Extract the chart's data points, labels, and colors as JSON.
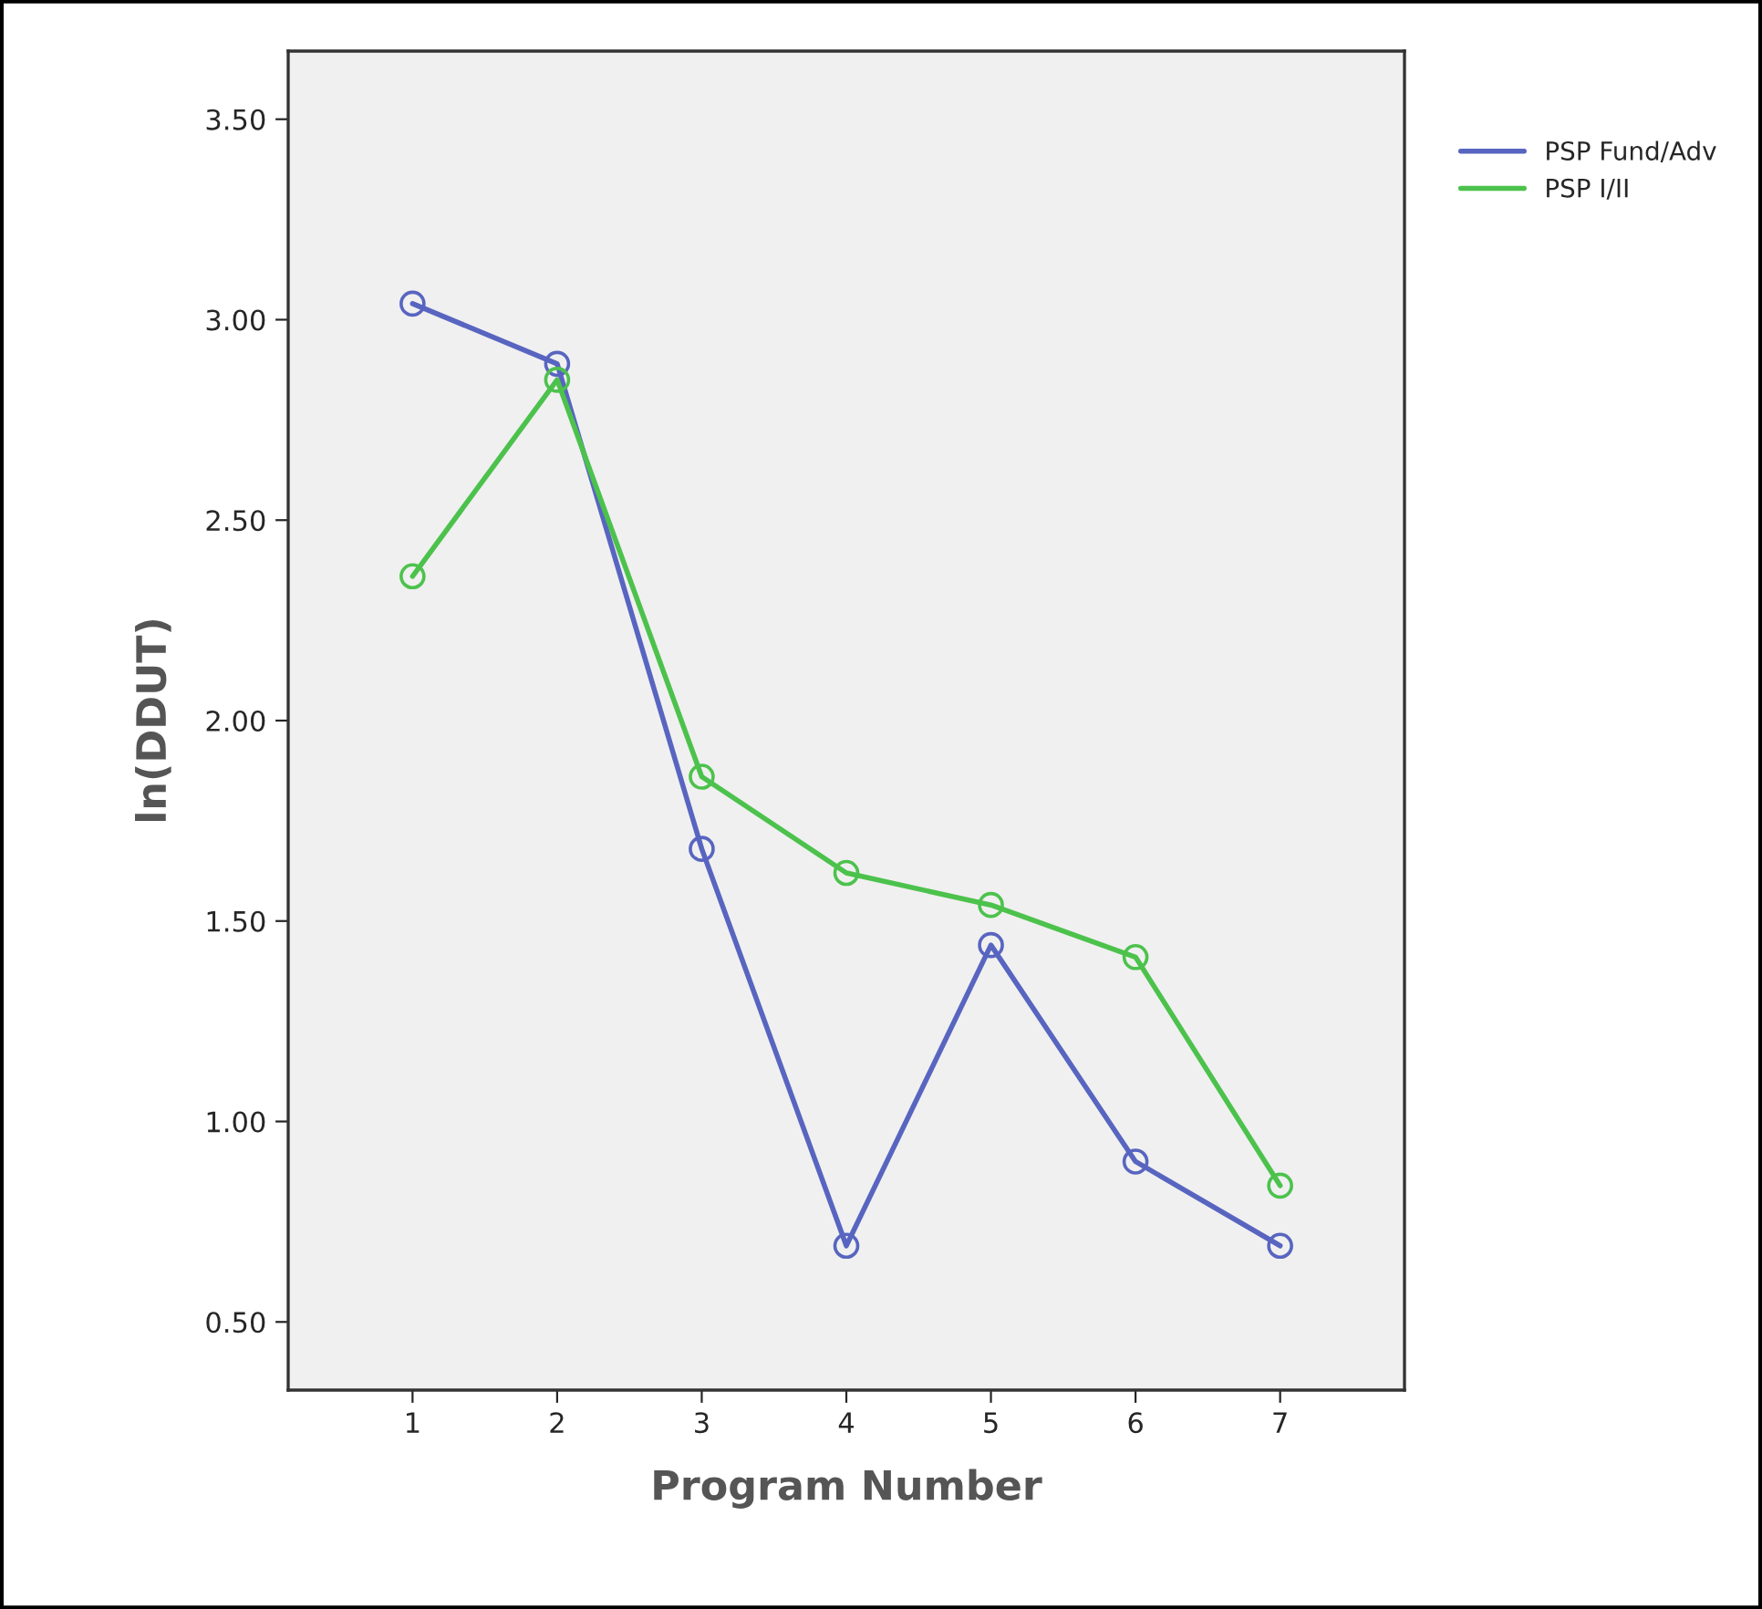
{
  "chart_data": {
    "type": "line",
    "xlabel": "Program Number",
    "ylabel": "ln(DDUT)",
    "categories": [
      "1",
      "2",
      "3",
      "4",
      "5",
      "6",
      "7"
    ],
    "series": [
      {
        "name": "PSP Fund/Adv",
        "color": "#5865c0",
        "values": [
          3.04,
          2.89,
          1.68,
          0.69,
          1.44,
          0.9,
          0.69
        ]
      },
      {
        "name": "PSP I/II",
        "color": "#4cc24c",
        "values": [
          2.36,
          2.85,
          1.86,
          1.62,
          1.54,
          1.41,
          0.84
        ]
      }
    ],
    "ylim": [
      0.33,
      3.67
    ],
    "yticks": [
      {
        "value": 0.5,
        "label": "0.50"
      },
      {
        "value": 1.0,
        "label": "1.00"
      },
      {
        "value": 1.5,
        "label": "1.50"
      },
      {
        "value": 2.0,
        "label": "2.00"
      },
      {
        "value": 2.5,
        "label": "2.50"
      },
      {
        "value": 3.0,
        "label": "3.00"
      },
      {
        "value": 3.5,
        "label": "3.50"
      }
    ],
    "marker": "circle",
    "grid": false,
    "legend": "top right"
  }
}
